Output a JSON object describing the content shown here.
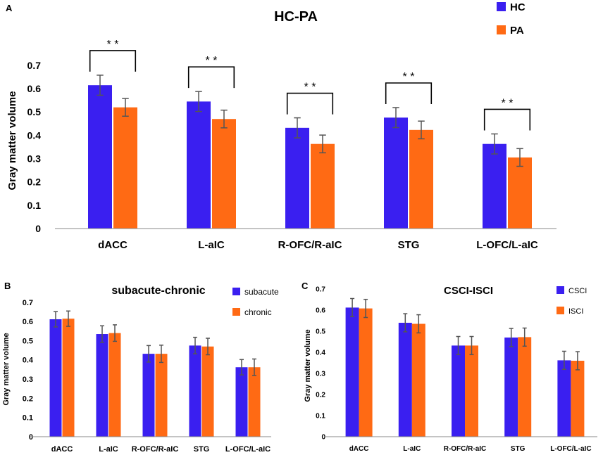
{
  "colors": {
    "series_a": "#3a1ff0",
    "series_b": "#ff6a14",
    "axis": "#888888",
    "error": "#555555"
  },
  "chart_data": [
    {
      "panel": "A",
      "type": "bar",
      "title": "HC-PA",
      "ylabel": "Gray matter volume",
      "xlabel": "",
      "ylim": [
        0,
        0.7
      ],
      "yticks": [
        "0",
        "0.1",
        "0.2",
        "0.3",
        "0.4",
        "0.5",
        "0.6",
        "0.7"
      ],
      "categories": [
        "dACC",
        "L-aIC",
        "R-OFC/R-aIC",
        "STG",
        "L-OFC/L-aIC"
      ],
      "series": [
        {
          "name": "HC",
          "values": [
            0.615,
            0.545,
            0.432,
            0.476,
            0.363
          ],
          "errors": [
            0.043,
            0.043,
            0.043,
            0.043,
            0.043
          ]
        },
        {
          "name": "PA",
          "values": [
            0.52,
            0.47,
            0.363,
            0.423,
            0.305
          ],
          "errors": [
            0.038,
            0.038,
            0.038,
            0.038,
            0.038
          ]
        }
      ],
      "significance": [
        "* *",
        "* *",
        "* *",
        "* *",
        "* *"
      ],
      "legend_position": "top-right"
    },
    {
      "panel": "B",
      "type": "bar",
      "title": "subacute-chronic",
      "ylabel": "Gray matter volume",
      "xlabel": "",
      "ylim": [
        0,
        0.7
      ],
      "yticks": [
        "0",
        "0.1",
        "0.2",
        "0.3",
        "0.4",
        "0.5",
        "0.6",
        "0.7"
      ],
      "categories": [
        "dACC",
        "L-aIC",
        "R-OFC/R-aIC",
        "STG",
        "L-OFC/L-aIC"
      ],
      "series": [
        {
          "name": "subacute",
          "values": [
            0.612,
            0.535,
            0.432,
            0.475,
            0.362
          ],
          "errors": [
            0.04,
            0.043,
            0.043,
            0.043,
            0.04
          ]
        },
        {
          "name": "chronic",
          "values": [
            0.615,
            0.54,
            0.432,
            0.47,
            0.362
          ],
          "errors": [
            0.04,
            0.043,
            0.045,
            0.043,
            0.043
          ]
        }
      ],
      "legend_position": "top-right"
    },
    {
      "panel": "C",
      "type": "bar",
      "title": "CSCI-ISCI",
      "ylabel": "Gray matter volume",
      "xlabel": "",
      "ylim": [
        0,
        0.7
      ],
      "yticks": [
        "0",
        "0.1",
        "0.2",
        "0.3",
        "0.4",
        "0.5",
        "0.6",
        "0.7"
      ],
      "categories": [
        "dACC",
        "L-aIC",
        "R-OFC/R-aIC",
        "STG",
        "L-OFC/L-aIC"
      ],
      "series": [
        {
          "name": "CSCI",
          "values": [
            0.612,
            0.54,
            0.432,
            0.47,
            0.362
          ],
          "errors": [
            0.043,
            0.043,
            0.043,
            0.043,
            0.043
          ]
        },
        {
          "name": "ISCI",
          "values": [
            0.608,
            0.535,
            0.432,
            0.472,
            0.36
          ],
          "errors": [
            0.043,
            0.043,
            0.043,
            0.043,
            0.043
          ]
        }
      ],
      "legend_position": "top-right"
    }
  ]
}
